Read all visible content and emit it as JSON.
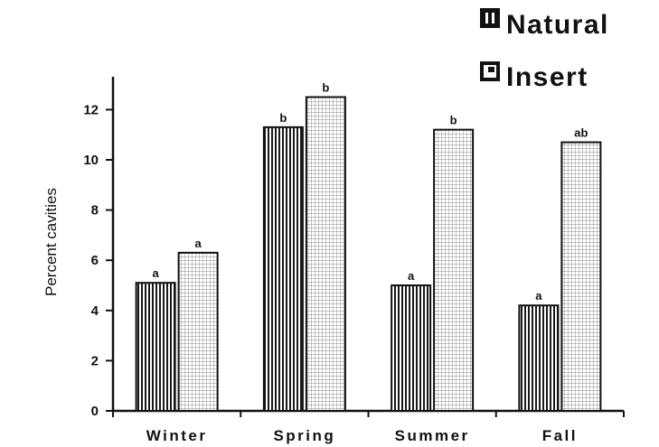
{
  "chart_data": {
    "type": "bar",
    "title": "",
    "xlabel": "",
    "ylabel": "Percent cavities",
    "ylim": [
      0,
      13
    ],
    "yticks": [
      0,
      2,
      4,
      6,
      8,
      10,
      12
    ],
    "categories": [
      "Winter",
      "Spring",
      "Summer",
      "Fall"
    ],
    "series": [
      {
        "name": "Natural",
        "values": [
          5.1,
          11.3,
          5.0,
          4.2
        ],
        "labels": [
          "a",
          "b",
          "a",
          "a"
        ],
        "pattern": "vertical-stripes"
      },
      {
        "name": "Insert",
        "values": [
          6.3,
          12.5,
          11.2,
          10.7
        ],
        "labels": [
          "a",
          "b",
          "b",
          "ab"
        ],
        "pattern": "grid"
      }
    ],
    "legend_position": "top-right",
    "grid": false
  }
}
